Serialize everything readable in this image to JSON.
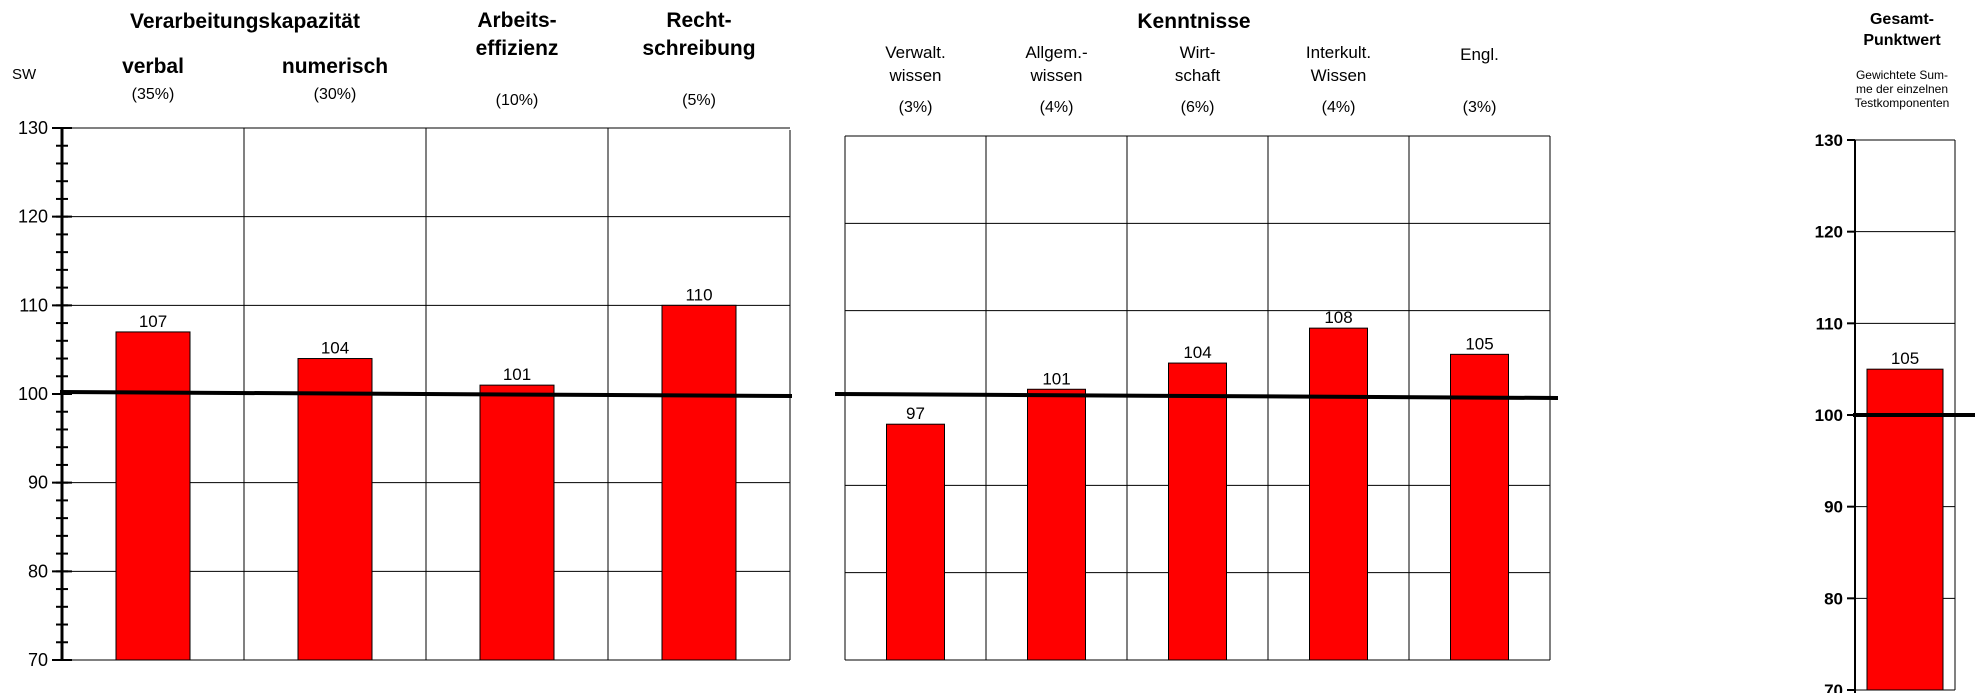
{
  "header": {
    "sw_label": "SW",
    "group1_title": "Verarbeitungskapazität",
    "group2_title": "Kenntnisse",
    "total_title_line1": "Gesamt-",
    "total_title_line2": "Punktwert",
    "total_desc_line1": "Gewichtete Sum-",
    "total_desc_line2": "me der einzelnen",
    "total_desc_line3": "Testkomponenten"
  },
  "chart_data": [
    {
      "type": "bar",
      "ylim": [
        70,
        130
      ],
      "yticks": [
        70,
        80,
        90,
        100,
        110,
        120,
        130
      ],
      "reference_line": 100,
      "categories": [
        {
          "label": [
            "verbal"
          ],
          "weight": "(35%)",
          "value": 107
        },
        {
          "label": [
            "numerisch"
          ],
          "weight": "(30%)",
          "value": 104
        },
        {
          "label": [
            "Arbeits-",
            "effizienz"
          ],
          "weight": "(10%)",
          "value": 101
        },
        {
          "label": [
            "Recht-",
            "schreibung"
          ],
          "weight": "(5%)",
          "value": 110
        }
      ],
      "bar_color": "#ff0000"
    },
    {
      "type": "bar",
      "ylim": [
        70,
        130
      ],
      "reference_line": 100,
      "categories": [
        {
          "label": [
            "Verwalt.",
            "wissen"
          ],
          "weight": "(3%)",
          "value": 97
        },
        {
          "label": [
            "Allgem.-",
            "wissen"
          ],
          "weight": "(4%)",
          "value": 101
        },
        {
          "label": [
            "Wirt-",
            "schaft"
          ],
          "weight": "(6%)",
          "value": 104
        },
        {
          "label": [
            "Interkult.",
            "Wissen"
          ],
          "weight": "(4%)",
          "value": 108
        },
        {
          "label": [
            "Engl."
          ],
          "weight": "(3%)",
          "value": 105
        }
      ],
      "bar_color": "#ff0000"
    },
    {
      "type": "bar",
      "ylim": [
        70,
        130
      ],
      "yticks": [
        70,
        80,
        90,
        100,
        110,
        120,
        130
      ],
      "reference_line": 100,
      "categories": [
        {
          "label": [],
          "weight": "",
          "value": 105
        }
      ],
      "bar_color": "#ff0000"
    }
  ]
}
